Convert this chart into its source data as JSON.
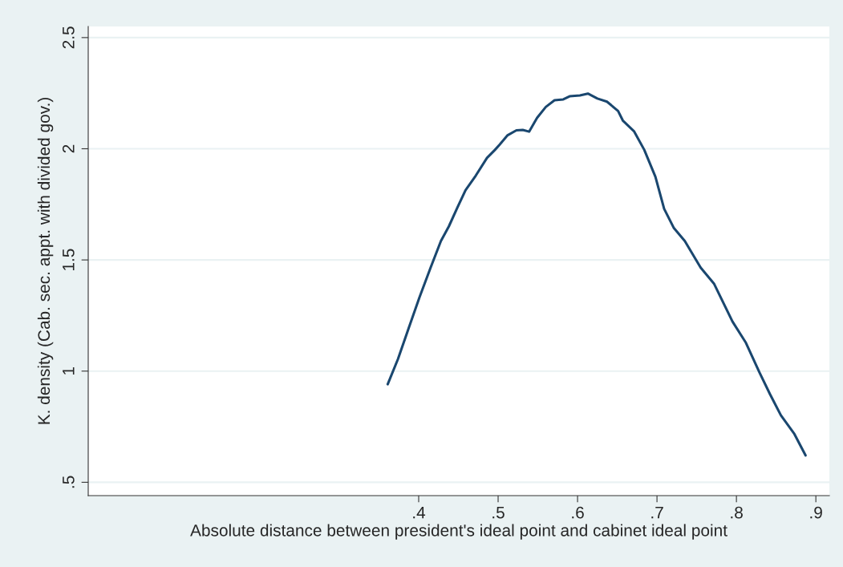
{
  "chart_data": {
    "type": "line",
    "xlabel": "Absolute distance between president's ideal point and cabinet ideal point",
    "ylabel": "K. density (Cab. sec. appt. with divided gov.)",
    "xlim": [
      -0.016,
      0.917
    ],
    "ylim": [
      0.44,
      2.55
    ],
    "xticks": [
      {
        "value": 0.4,
        "label": ".4"
      },
      {
        "value": 0.5,
        "label": ".5"
      },
      {
        "value": 0.6,
        "label": ".6"
      },
      {
        "value": 0.7,
        "label": ".7"
      },
      {
        "value": 0.8,
        "label": ".8"
      },
      {
        "value": 0.9,
        "label": ".9"
      }
    ],
    "yticks": [
      {
        "value": 0.5,
        "label": ".5"
      },
      1,
      1.5,
      2,
      2.5
    ],
    "grid": "y",
    "marker": "none",
    "line_style": "solid",
    "series": [
      {
        "color": "#1a476f",
        "x": [
          0.361,
          0.374,
          0.388,
          0.401,
          0.415,
          0.428,
          0.438,
          0.448,
          0.459,
          0.472,
          0.486,
          0.496,
          0.502,
          0.512,
          0.523,
          0.531,
          0.539,
          0.549,
          0.56,
          0.571,
          0.582,
          0.59,
          0.603,
          0.613,
          0.625,
          0.637,
          0.651,
          0.657,
          0.671,
          0.684,
          0.698,
          0.709,
          0.721,
          0.735,
          0.755,
          0.772,
          0.795,
          0.812,
          0.829,
          0.842,
          0.856,
          0.873,
          0.887
        ],
        "values": [
          0.941,
          1.055,
          1.199,
          1.332,
          1.465,
          1.585,
          1.651,
          1.73,
          1.814,
          1.88,
          1.959,
          1.995,
          2.019,
          2.061,
          2.083,
          2.085,
          2.077,
          2.139,
          2.188,
          2.218,
          2.222,
          2.236,
          2.24,
          2.248,
          2.226,
          2.212,
          2.17,
          2.127,
          2.079,
          1.995,
          1.874,
          1.73,
          1.645,
          1.585,
          1.465,
          1.392,
          1.223,
          1.127,
          0.994,
          0.898,
          0.801,
          0.717,
          0.621
        ]
      }
    ]
  }
}
